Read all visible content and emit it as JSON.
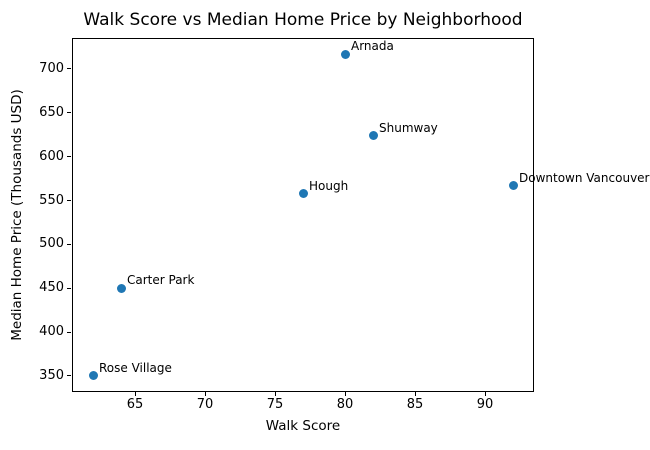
{
  "chart_data": {
    "type": "scatter",
    "title": "Walk Score vs Median Home Price by Neighborhood",
    "xlabel": "Walk Score",
    "ylabel": "Median Home Price (Thousands USD)",
    "points": [
      {
        "label": "Arnada",
        "x": 80,
        "y": 717
      },
      {
        "label": "Shumway",
        "x": 82,
        "y": 624
      },
      {
        "label": "Downtown Vancouver",
        "x": 92,
        "y": 567
      },
      {
        "label": "Hough",
        "x": 77,
        "y": 558
      },
      {
        "label": "Carter Park",
        "x": 64,
        "y": 450
      },
      {
        "label": "Rose Village",
        "x": 62,
        "y": 350
      }
    ],
    "xticks": [
      65,
      70,
      75,
      80,
      85,
      90
    ],
    "yticks": [
      350,
      400,
      450,
      500,
      550,
      600,
      650,
      700
    ],
    "xlim": [
      60.5,
      93.5
    ],
    "ylim": [
      331.65,
      735.35
    ],
    "grid": true,
    "legend": "none",
    "marker_color": "#1f77b4",
    "grid_color": "#b0b0b0",
    "spine_color": "#000000",
    "background_color": "#ffffff"
  }
}
